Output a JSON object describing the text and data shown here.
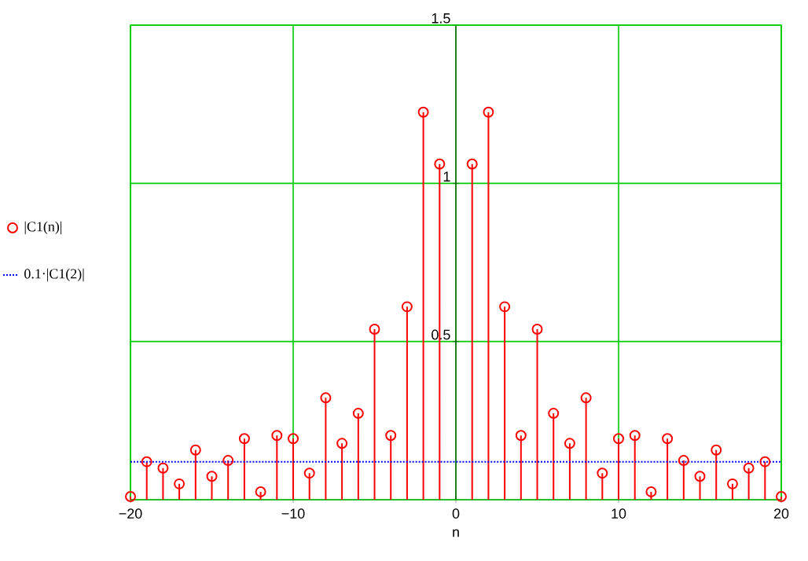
{
  "chart_data": {
    "type": "lollipop",
    "xlabel": "n",
    "x": [
      -20,
      -19,
      -18,
      -17,
      -16,
      -15,
      -14,
      -13,
      -12,
      -11,
      -10,
      -9,
      -8,
      -7,
      -6,
      -5,
      -4,
      -3,
      -2,
      -1,
      0,
      1,
      2,
      3,
      4,
      5,
      6,
      7,
      8,
      9,
      10,
      11,
      12,
      13,
      14,
      15,
      16,
      17,
      18,
      19,
      20
    ],
    "series": [
      {
        "name": "|C1(n)|",
        "color": "#ff0000",
        "marker": "circle",
        "values": [
          0.01,
          0.12,
          0.1,
          0.05,
          0.157,
          0.074,
          0.124,
          0.193,
          0.025,
          0.203,
          0.193,
          0.084,
          0.322,
          0.178,
          0.273,
          0.539,
          0.203,
          0.61,
          1.225,
          1.061,
          null,
          1.061,
          1.225,
          0.61,
          0.203,
          0.539,
          0.273,
          0.178,
          0.322,
          0.084,
          0.193,
          0.203,
          0.025,
          0.193,
          0.124,
          0.074,
          0.157,
          0.05,
          0.1,
          0.12,
          0.01
        ]
      },
      {
        "name": "0.1·|C1(2)|",
        "type": "line",
        "color": "#0000ff",
        "line_style": "dotted",
        "marker": "none",
        "x": [
          -20,
          20
        ],
        "values": [
          0.12,
          0.12
        ]
      }
    ],
    "xlim": [
      -20,
      20
    ],
    "ylim": [
      0,
      1.5
    ],
    "xticks": [
      {
        "value": -20,
        "label": "−20"
      },
      {
        "value": -10,
        "label": "−10"
      },
      0,
      10,
      20
    ],
    "yticks": [
      {
        "value": 0,
        "label": null
      },
      0.5,
      1,
      1.5
    ],
    "grid": true,
    "legend": "left"
  }
}
